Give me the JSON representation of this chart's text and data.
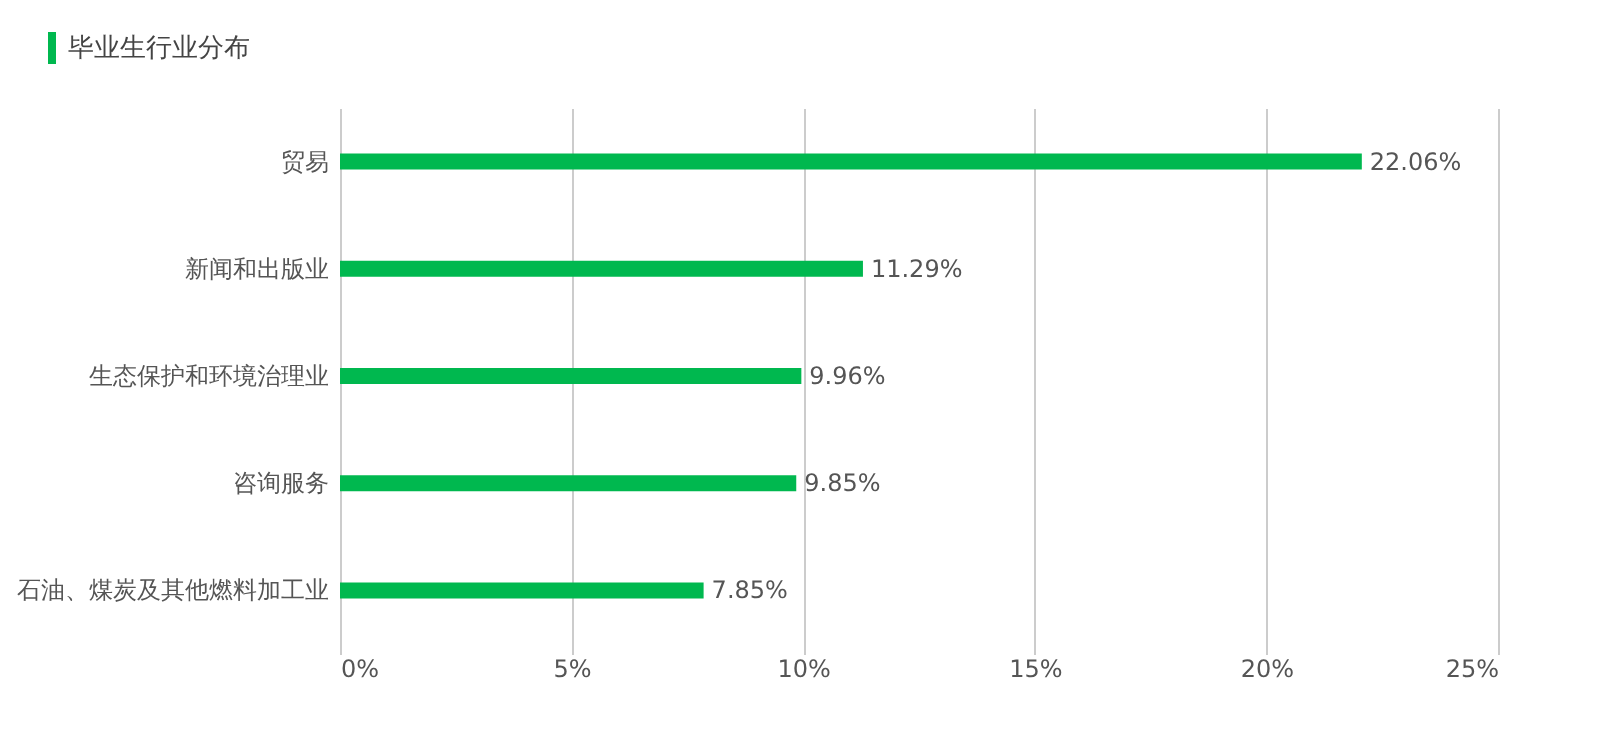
{
  "chart_data": {
    "type": "bar",
    "orientation": "horizontal",
    "title": "毕业生行业分布",
    "categories": [
      "贸易",
      "新闻和出版业",
      "生态保护和环境治理业",
      "咨询服务",
      "石油、煤炭及其他燃料加工业"
    ],
    "values": [
      22.06,
      11.29,
      9.96,
      9.85,
      7.85
    ],
    "value_labels": [
      "22.06%",
      "11.29%",
      "9.96%",
      "9.85%",
      "7.85%"
    ],
    "color": "#00b84f",
    "xlim": [
      0,
      25
    ],
    "xticks": [
      {
        "value": 0,
        "label": "0%"
      },
      {
        "value": 5,
        "label": "5%"
      },
      {
        "value": 10,
        "label": "10%"
      },
      {
        "value": 15,
        "label": "15%"
      },
      {
        "value": 20,
        "label": "20%"
      },
      {
        "value": 25,
        "label": "25%"
      }
    ],
    "grid": "x"
  }
}
